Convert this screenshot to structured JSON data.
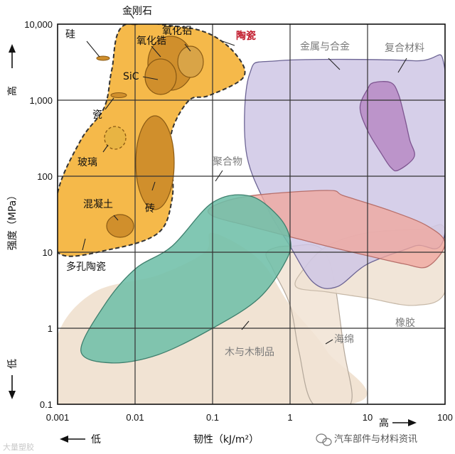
{
  "chart_data": {
    "type": "area",
    "title": "",
    "xlabel": "韧性（kJ/m²）",
    "ylabel": "强度（MPa）",
    "xscale": "log",
    "yscale": "log",
    "xlim": [
      0.001,
      100
    ],
    "ylim": [
      0.1,
      10000
    ],
    "x_ticks": [
      {
        "value": 0.001,
        "label": "0.001"
      },
      {
        "value": 0.01,
        "label": "0.01"
      },
      {
        "value": 0.1,
        "label": "0.1"
      },
      {
        "value": 1,
        "label": "1"
      },
      {
        "value": 10,
        "label": "10"
      },
      {
        "value": 100,
        "label": "100"
      }
    ],
    "y_ticks": [
      {
        "value": 0.1,
        "label": "0.1"
      },
      {
        "value": 1,
        "label": "1"
      },
      {
        "value": 10,
        "label": "10"
      },
      {
        "value": 100,
        "label": "100"
      },
      {
        "value": 1000,
        "label": "1,000"
      },
      {
        "value": 10000,
        "label": "10,000"
      }
    ],
    "grid": true,
    "x_direction": {
      "low": "低",
      "high": "高"
    },
    "y_direction": {
      "low": "低",
      "high": "高"
    },
    "regions": [
      {
        "name": "wood",
        "label": "木与木制品",
        "color": "#f1e3d3",
        "points": [
          [
            0.001,
            0.1
          ],
          [
            0.001,
            0.8
          ],
          [
            0.003,
            3
          ],
          [
            0.02,
            5
          ],
          [
            0.08,
            10
          ],
          [
            0.1,
            18
          ],
          [
            0.4,
            8
          ],
          [
            1,
            2
          ],
          [
            3,
            0.5
          ],
          [
            6,
            0.1
          ]
        ]
      },
      {
        "name": "foam",
        "label": "海绵",
        "color": "#f1e3d3",
        "points": [
          [
            2,
            0.1
          ],
          [
            1.3,
            0.5
          ],
          [
            1,
            2
          ],
          [
            0.6,
            6
          ],
          [
            0.5,
            10
          ],
          [
            1,
            12
          ],
          [
            3,
            9
          ],
          [
            5,
            0.5
          ],
          [
            6,
            0.1
          ]
        ]
      },
      {
        "name": "rubber",
        "label": "橡胶",
        "color": "#efe2d4",
        "points": [
          [
            1.5,
            6
          ],
          [
            3,
            12
          ],
          [
            10,
            18
          ],
          [
            50,
            20
          ],
          [
            100,
            20
          ],
          [
            100,
            3
          ],
          [
            40,
            2
          ],
          [
            10,
            2.5
          ],
          [
            3,
            3
          ],
          [
            1.2,
            3.5
          ]
        ]
      },
      {
        "name": "metals",
        "label": "金属与合金",
        "color": "#cfc7e5",
        "points": [
          [
            0.3,
            2200
          ],
          [
            0.7,
            3300
          ],
          [
            40,
            3300
          ],
          [
            100,
            2500
          ],
          [
            100,
            18
          ],
          [
            40,
            12
          ],
          [
            10,
            7
          ],
          [
            4,
            3.5
          ],
          [
            2,
            4
          ],
          [
            1,
            12
          ],
          [
            0.5,
            40
          ],
          [
            0.27,
            220
          ]
        ]
      },
      {
        "name": "polymers",
        "label": "聚合物",
        "color": "#f0a79e",
        "points": [
          [
            0.1,
            40
          ],
          [
            0.3,
            55
          ],
          [
            3,
            65
          ],
          [
            5,
            55
          ],
          [
            20,
            35
          ],
          [
            60,
            22
          ],
          [
            100,
            13
          ],
          [
            60,
            6.5
          ],
          [
            30,
            7
          ],
          [
            10,
            9
          ],
          [
            3,
            12
          ],
          [
            1,
            16
          ],
          [
            0.3,
            22
          ],
          [
            0.1,
            30
          ]
        ]
      },
      {
        "name": "composites",
        "label": "复合材料",
        "color": "#b98dc7",
        "points": [
          [
            10,
            1400
          ],
          [
            12,
            1700
          ],
          [
            20,
            1700
          ],
          [
            25,
            1200
          ],
          [
            30,
            600
          ],
          [
            35,
            300
          ],
          [
            40,
            180
          ],
          [
            25,
            120
          ],
          [
            20,
            130
          ],
          [
            15,
            200
          ],
          [
            10,
            400
          ],
          [
            8,
            800
          ]
        ]
      },
      {
        "name": "wood-shape",
        "label": "",
        "color": "#6fbfa9",
        "points": [
          [
            0.002,
            0.5
          ],
          [
            0.004,
            2
          ],
          [
            0.01,
            6
          ],
          [
            0.03,
            12
          ],
          [
            0.1,
            45
          ],
          [
            0.3,
            55
          ],
          [
            0.7,
            30
          ],
          [
            1,
            15
          ],
          [
            0.9,
            8
          ],
          [
            0.4,
            2.5
          ],
          [
            0.1,
            1
          ],
          [
            0.02,
            0.45
          ],
          [
            0.005,
            0.35
          ]
        ]
      },
      {
        "name": "ceramics",
        "label": "陶瓷",
        "color": "#f5b94a",
        "points": [
          [
            0.001,
            10
          ],
          [
            0.001,
            60
          ],
          [
            0.002,
            300
          ],
          [
            0.004,
            800
          ],
          [
            0.005,
            2500
          ],
          [
            0.007,
            9500
          ],
          [
            0.03,
            9500
          ],
          [
            0.09,
            7500
          ],
          [
            0.2,
            4000
          ],
          [
            0.25,
            2000
          ],
          [
            0.09,
            1150
          ],
          [
            0.05,
            1000
          ],
          [
            0.03,
            400
          ],
          [
            0.03,
            150
          ],
          [
            0.03,
            50
          ],
          [
            0.02,
            18
          ],
          [
            0.005,
            11
          ]
        ]
      }
    ],
    "inner_regions": [
      {
        "name": "zirconia",
        "label": "氧化锆",
        "color": "#d08f2c"
      },
      {
        "name": "alumina",
        "label": "氧化铝",
        "color": "#d08f2c"
      },
      {
        "name": "sic",
        "label": "SiC",
        "color": "#d08f2c"
      },
      {
        "name": "silicon",
        "label": "硅",
        "color": "#d08f2c"
      },
      {
        "name": "porcelain",
        "label": "瓷",
        "color": "#d08f2c"
      },
      {
        "name": "glass",
        "label": "玻璃",
        "color": "#e8b443"
      },
      {
        "name": "brick",
        "label": "砖",
        "color": "#d08f2c"
      },
      {
        "name": "concrete",
        "label": "混凝土",
        "color": "#d08f2c"
      },
      {
        "name": "diamond",
        "label": "金刚石",
        "color": "#d08f2c"
      },
      {
        "name": "porous-ceramics",
        "label": "多孔陶瓷",
        "color": "#f5b94a"
      }
    ]
  },
  "watermark": {
    "left": "大量塑胶",
    "right": "汽车部件与材料资讯"
  }
}
